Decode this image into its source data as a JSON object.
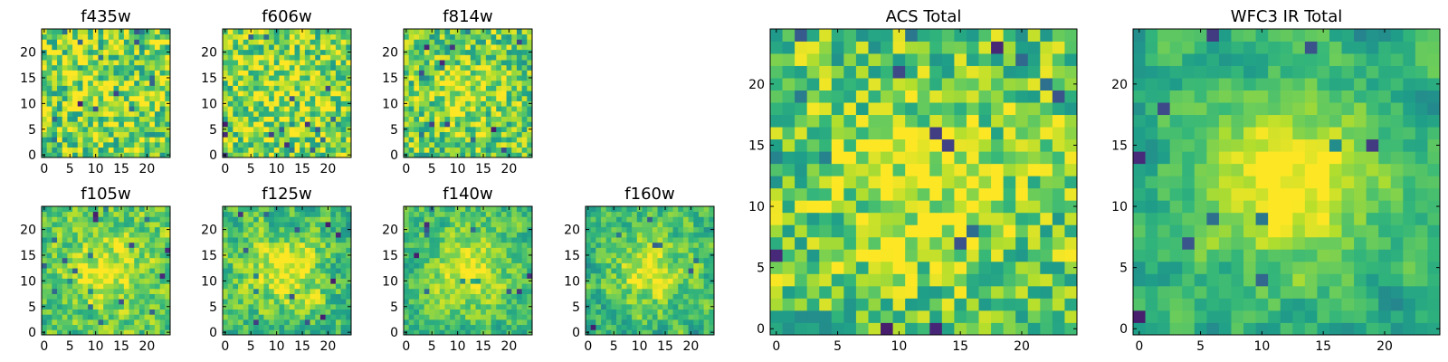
{
  "chart_data": [
    {
      "type": "heatmap",
      "title": "f435w",
      "grid_size": 25,
      "xlim": [
        0,
        24
      ],
      "ylim": [
        0,
        24
      ],
      "xticks": [
        0,
        5,
        10,
        15,
        20
      ],
      "yticks": [
        0,
        5,
        10,
        15,
        20
      ],
      "colormap": "viridis",
      "values_seed": 11,
      "smooth": 0.0,
      "peak": 0.15,
      "dropout": 0.035
    },
    {
      "type": "heatmap",
      "title": "f606w",
      "grid_size": 25,
      "xlim": [
        0,
        24
      ],
      "ylim": [
        0,
        24
      ],
      "xticks": [
        0,
        5,
        10,
        15,
        20
      ],
      "yticks": [
        0,
        5,
        10,
        15,
        20
      ],
      "colormap": "viridis",
      "values_seed": 23,
      "smooth": 0.0,
      "peak": 0.2,
      "dropout": 0.03
    },
    {
      "type": "heatmap",
      "title": "f814w",
      "grid_size": 25,
      "xlim": [
        0,
        24
      ],
      "ylim": [
        0,
        24
      ],
      "xticks": [
        0,
        5,
        10,
        15,
        20
      ],
      "yticks": [
        0,
        5,
        10,
        15,
        20
      ],
      "colormap": "viridis",
      "values_seed": 37,
      "smooth": 0.1,
      "peak": 0.3,
      "dropout": 0.03
    },
    {
      "type": "heatmap",
      "title": "f105w",
      "grid_size": 25,
      "xlim": [
        0,
        24
      ],
      "ylim": [
        0,
        24
      ],
      "xticks": [
        0,
        5,
        10,
        15,
        20
      ],
      "yticks": [
        0,
        5,
        10,
        15,
        20
      ],
      "colormap": "viridis",
      "values_seed": 41,
      "smooth": 0.45,
      "peak": 0.45,
      "dropout": 0.025
    },
    {
      "type": "heatmap",
      "title": "f125w",
      "grid_size": 25,
      "xlim": [
        0,
        24
      ],
      "ylim": [
        0,
        24
      ],
      "xticks": [
        0,
        5,
        10,
        15,
        20
      ],
      "yticks": [
        0,
        5,
        10,
        15,
        20
      ],
      "colormap": "viridis",
      "values_seed": 53,
      "smooth": 0.45,
      "peak": 0.5,
      "dropout": 0.025
    },
    {
      "type": "heatmap",
      "title": "f140w",
      "grid_size": 25,
      "xlim": [
        0,
        24
      ],
      "ylim": [
        0,
        24
      ],
      "xticks": [
        0,
        5,
        10,
        15,
        20
      ],
      "yticks": [
        0,
        5,
        10,
        15,
        20
      ],
      "colormap": "viridis",
      "values_seed": 67,
      "smooth": 0.5,
      "peak": 0.55,
      "dropout": 0.02
    },
    {
      "type": "heatmap",
      "title": "f160w",
      "grid_size": 25,
      "xlim": [
        0,
        24
      ],
      "ylim": [
        0,
        24
      ],
      "xticks": [
        0,
        5,
        10,
        15,
        20
      ],
      "yticks": [
        0,
        5,
        10,
        15,
        20
      ],
      "colormap": "viridis",
      "values_seed": 79,
      "smooth": 0.5,
      "peak": 0.55,
      "dropout": 0.02
    },
    {
      "type": "heatmap",
      "title": "ACS Total",
      "grid_size": 25,
      "xlim": [
        0,
        24
      ],
      "ylim": [
        0,
        24
      ],
      "xticks": [
        0,
        5,
        10,
        15,
        20
      ],
      "yticks": [
        0,
        5,
        10,
        15,
        20
      ],
      "colormap": "viridis",
      "values_seed": 97,
      "smooth": 0.15,
      "peak": 0.35,
      "dropout": 0.035
    },
    {
      "type": "heatmap",
      "title": "WFC3 IR Total",
      "grid_size": 25,
      "xlim": [
        0,
        24
      ],
      "ylim": [
        0,
        24
      ],
      "xticks": [
        0,
        5,
        10,
        15,
        20
      ],
      "yticks": [
        0,
        5,
        10,
        15,
        20
      ],
      "colormap": "viridis",
      "values_seed": 113,
      "smooth": 0.65,
      "peak": 0.75,
      "dropout": 0.02
    }
  ]
}
